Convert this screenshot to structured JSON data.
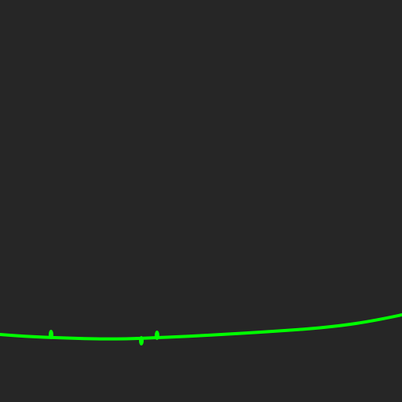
{
  "canvas": {
    "background_color": "#262626"
  },
  "curve": {
    "color": "#00ff00",
    "control_point_count": 3
  }
}
